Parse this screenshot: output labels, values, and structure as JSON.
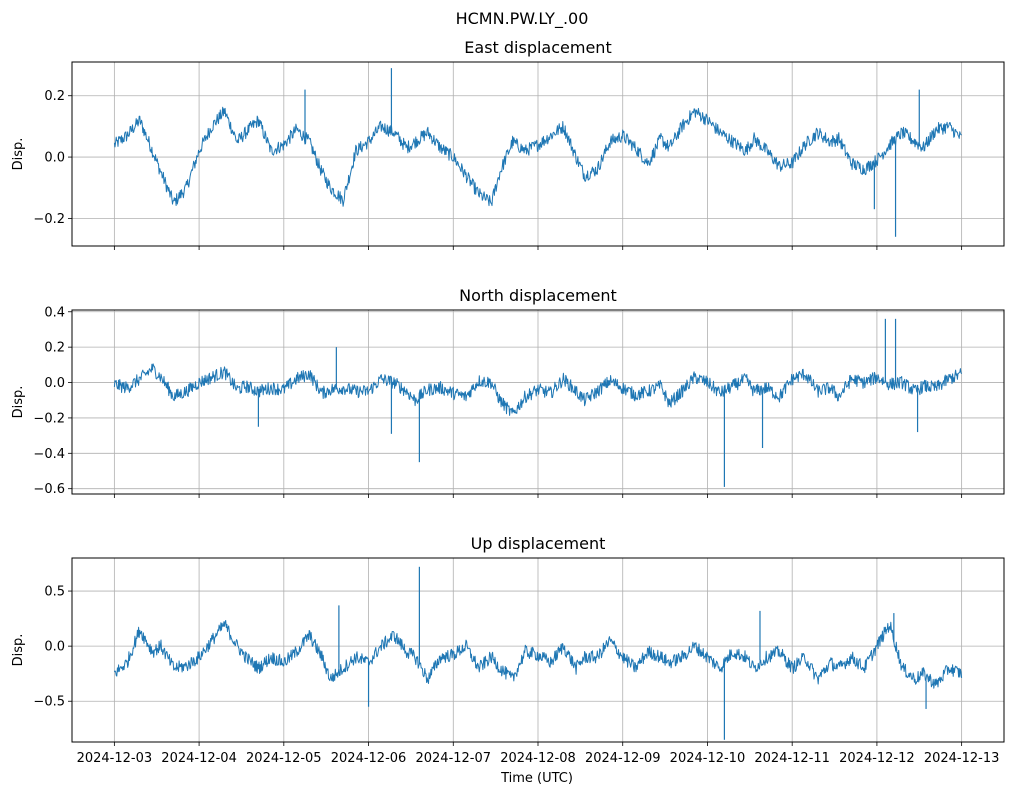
{
  "chart_data": {
    "type": "line",
    "suptitle": "HCMN.PW.LY_.00",
    "xlabel": "Time (UTC)",
    "x_ticks": [
      "2024-12-03",
      "2024-12-04",
      "2024-12-05",
      "2024-12-06",
      "2024-12-07",
      "2024-12-08",
      "2024-12-09",
      "2024-12-10",
      "2024-12-11",
      "2024-12-12",
      "2024-12-13"
    ],
    "xlim_days": [
      -0.5,
      10.5
    ],
    "grid": true,
    "line_color": "#1f77b4",
    "panels": [
      {
        "title": "East displacement",
        "ylabel": "Disp.",
        "ylim": [
          -0.29,
          0.31
        ],
        "yticks": [
          -0.2,
          0.0,
          0.2
        ],
        "ytick_labels": [
          "−0.2",
          "0.0",
          "0.2"
        ],
        "series_days": [
          0,
          0.15,
          0.3,
          0.45,
          0.55,
          0.7,
          0.85,
          1,
          1.15,
          1.3,
          1.45,
          1.55,
          1.7,
          1.85,
          2,
          2.15,
          2.3,
          2.45,
          2.55,
          2.7,
          2.85,
          3,
          3.15,
          3.3,
          3.45,
          3.55,
          3.7,
          3.85,
          4,
          4.15,
          4.3,
          4.45,
          4.55,
          4.7,
          4.85,
          5,
          5.15,
          5.3,
          5.45,
          5.55,
          5.7,
          5.85,
          6,
          6.15,
          6.3,
          6.45,
          6.55,
          6.7,
          6.85,
          7,
          7.15,
          7.3,
          7.45,
          7.55,
          7.7,
          7.85,
          8,
          8.15,
          8.3,
          8.45,
          8.55,
          8.7,
          8.85,
          9,
          9.15,
          9.3,
          9.45,
          9.55,
          9.7,
          9.85,
          10
        ],
        "series_values": [
          0.04,
          0.07,
          0.12,
          0.02,
          -0.05,
          -0.15,
          -0.1,
          0.02,
          0.1,
          0.15,
          0.05,
          0.08,
          0.12,
          0.02,
          0.04,
          0.09,
          0.05,
          -0.05,
          -0.1,
          -0.14,
          0.02,
          0.05,
          0.1,
          0.08,
          0.03,
          0.05,
          0.08,
          0.03,
          0.0,
          -0.06,
          -0.12,
          -0.15,
          -0.05,
          0.05,
          0.02,
          0.04,
          0.07,
          0.1,
          0.0,
          -0.06,
          -0.04,
          0.05,
          0.07,
          0.03,
          -0.02,
          0.06,
          0.03,
          0.1,
          0.15,
          0.12,
          0.08,
          0.05,
          0.02,
          0.06,
          0.02,
          -0.03,
          -0.02,
          0.04,
          0.08,
          0.05,
          0.06,
          -0.02,
          -0.04,
          -0.01,
          0.04,
          0.08,
          0.05,
          0.03,
          0.09,
          0.1,
          0.06
        ],
        "spikes": [
          {
            "day": 3.27,
            "value": 0.29
          },
          {
            "day": 2.25,
            "value": 0.22
          },
          {
            "day": 9.22,
            "value": -0.26
          },
          {
            "day": 8.97,
            "value": -0.17
          },
          {
            "day": 9.5,
            "value": 0.22
          }
        ]
      },
      {
        "title": "North displacement",
        "ylabel": "Disp.",
        "ylim": [
          -0.63,
          0.41
        ],
        "yticks": [
          -0.6,
          -0.4,
          -0.2,
          0.0,
          0.2,
          0.4
        ],
        "ytick_labels": [
          "−0.6",
          "−0.4",
          "−0.2",
          "0.0",
          "0.2",
          "0.4"
        ],
        "series_days": [
          0,
          0.15,
          0.3,
          0.45,
          0.55,
          0.7,
          0.85,
          1,
          1.15,
          1.3,
          1.45,
          1.55,
          1.7,
          1.85,
          2,
          2.15,
          2.3,
          2.45,
          2.55,
          2.7,
          2.85,
          3,
          3.15,
          3.3,
          3.45,
          3.55,
          3.7,
          3.85,
          4,
          4.15,
          4.3,
          4.45,
          4.55,
          4.7,
          4.85,
          5,
          5.15,
          5.3,
          5.45,
          5.55,
          5.7,
          5.85,
          6,
          6.15,
          6.3,
          6.45,
          6.55,
          6.7,
          6.85,
          7,
          7.15,
          7.3,
          7.45,
          7.55,
          7.7,
          7.85,
          8,
          8.15,
          8.3,
          8.45,
          8.55,
          8.7,
          8.85,
          9,
          9.15,
          9.3,
          9.45,
          9.55,
          9.7,
          9.85,
          10
        ],
        "series_values": [
          -0.01,
          -0.03,
          0.02,
          0.08,
          0.03,
          -0.08,
          -0.05,
          0.0,
          0.03,
          0.06,
          -0.04,
          -0.02,
          -0.05,
          -0.03,
          -0.04,
          0.02,
          0.05,
          -0.06,
          -0.04,
          -0.03,
          -0.05,
          -0.05,
          0.02,
          0.0,
          -0.05,
          -0.1,
          -0.04,
          -0.03,
          -0.06,
          -0.08,
          0.01,
          0.0,
          -0.1,
          -0.18,
          -0.08,
          -0.04,
          -0.06,
          0.02,
          -0.05,
          -0.1,
          -0.05,
          0.01,
          -0.03,
          -0.07,
          -0.05,
          -0.02,
          -0.12,
          -0.05,
          0.03,
          0.0,
          -0.06,
          -0.02,
          0.02,
          -0.05,
          -0.03,
          -0.08,
          0.02,
          0.05,
          -0.05,
          -0.03,
          -0.08,
          0.02,
          0.0,
          0.03,
          -0.01,
          0.0,
          -0.05,
          -0.02,
          -0.03,
          0.02,
          0.05
        ],
        "spikes": [
          {
            "day": 2.62,
            "value": 0.2
          },
          {
            "day": 3.6,
            "value": -0.45
          },
          {
            "day": 7.2,
            "value": -0.59
          },
          {
            "day": 7.65,
            "value": -0.37
          },
          {
            "day": 9.1,
            "value": 0.36
          },
          {
            "day": 9.22,
            "value": 0.36
          },
          {
            "day": 9.48,
            "value": -0.28
          },
          {
            "day": 1.7,
            "value": -0.25
          },
          {
            "day": 3.27,
            "value": -0.29
          }
        ]
      },
      {
        "title": "Up displacement",
        "ylabel": "Disp.",
        "ylim": [
          -0.87,
          0.8
        ],
        "yticks": [
          -0.5,
          0.0,
          0.5
        ],
        "ytick_labels": [
          "−0.5",
          "0.0",
          "0.5"
        ],
        "series_days": [
          0,
          0.15,
          0.3,
          0.45,
          0.55,
          0.7,
          0.85,
          1,
          1.15,
          1.3,
          1.45,
          1.55,
          1.7,
          1.85,
          2,
          2.15,
          2.3,
          2.45,
          2.55,
          2.7,
          2.85,
          3,
          3.15,
          3.3,
          3.45,
          3.55,
          3.7,
          3.85,
          4,
          4.15,
          4.3,
          4.45,
          4.55,
          4.7,
          4.85,
          5,
          5.15,
          5.3,
          5.45,
          5.55,
          5.7,
          5.85,
          6,
          6.15,
          6.3,
          6.45,
          6.55,
          6.7,
          6.85,
          7,
          7.15,
          7.3,
          7.45,
          7.55,
          7.7,
          7.85,
          8,
          8.15,
          8.3,
          8.45,
          8.55,
          8.7,
          8.85,
          9,
          9.15,
          9.3,
          9.45,
          9.55,
          9.7,
          9.85,
          10
        ],
        "series_values": [
          -0.25,
          -0.15,
          0.15,
          -0.05,
          0.0,
          -0.2,
          -0.18,
          -0.1,
          0.05,
          0.2,
          0.0,
          -0.1,
          -0.2,
          -0.1,
          -0.15,
          -0.05,
          0.1,
          -0.1,
          -0.3,
          -0.2,
          -0.1,
          -0.15,
          0.0,
          0.1,
          -0.05,
          -0.1,
          -0.3,
          -0.1,
          -0.08,
          0.0,
          -0.2,
          -0.1,
          -0.2,
          -0.3,
          -0.05,
          -0.08,
          -0.15,
          0.0,
          -0.2,
          -0.1,
          -0.1,
          0.05,
          -0.1,
          -0.2,
          -0.05,
          -0.1,
          -0.15,
          -0.1,
          0.0,
          -0.1,
          -0.2,
          -0.05,
          -0.1,
          -0.2,
          -0.1,
          -0.05,
          -0.2,
          -0.1,
          -0.3,
          -0.15,
          -0.2,
          -0.1,
          -0.2,
          0.0,
          0.2,
          -0.2,
          -0.3,
          -0.25,
          -0.35,
          -0.2,
          -0.25
        ],
        "spikes": [
          {
            "day": 3.6,
            "value": 0.72
          },
          {
            "day": 7.2,
            "value": -0.85
          },
          {
            "day": 3.0,
            "value": -0.55
          },
          {
            "day": 2.65,
            "value": 0.37
          },
          {
            "day": 9.58,
            "value": -0.57
          },
          {
            "day": 9.2,
            "value": 0.3
          },
          {
            "day": 7.62,
            "value": 0.32
          }
        ]
      }
    ]
  }
}
